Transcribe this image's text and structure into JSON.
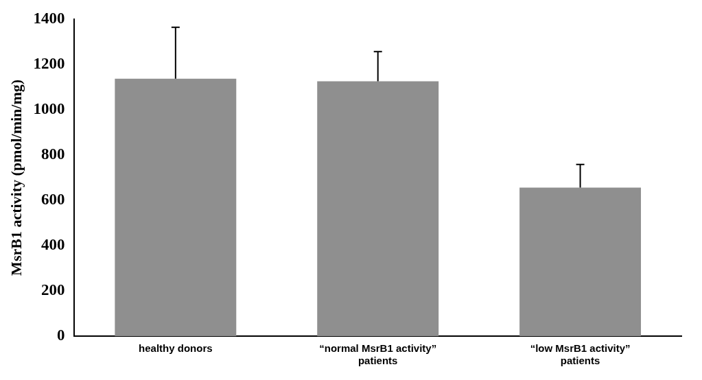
{
  "chart_data": {
    "type": "bar",
    "ylabel": "MsrB1 activity (pmol/min/mg)",
    "categories": [
      "healthy donors",
      "“normal MsrB1 activity” patients",
      "“low MsrB1 activity” patients"
    ],
    "values": [
      1137,
      1125,
      656
    ],
    "errors": [
      [
        1137,
        1364
      ],
      [
        1125,
        1256
      ],
      [
        656,
        758
      ]
    ],
    "color": "#8f8f8f",
    "ylim": [
      0,
      1400
    ],
    "yticks": [
      0,
      200,
      400,
      600,
      800,
      1000,
      1200,
      1400
    ],
    "grid": false,
    "legend": false
  }
}
